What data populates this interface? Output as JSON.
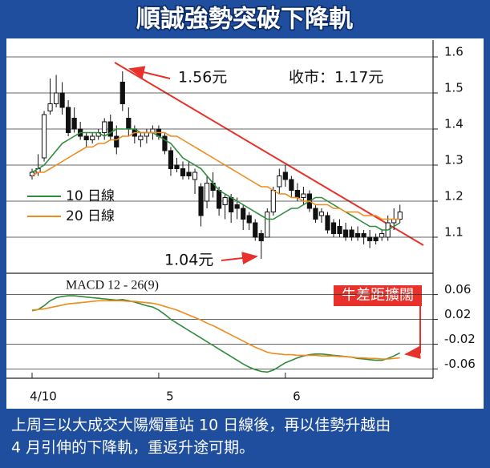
{
  "title": "順誠強勢突破下降軌",
  "chart_data": [
    {
      "type": "candlestick",
      "open": [
        1.27,
        1.28,
        1.32,
        1.45,
        1.47,
        1.5,
        1.46,
        1.43,
        1.4,
        1.38,
        1.37,
        1.38,
        1.39,
        1.42,
        1.38,
        1.53,
        1.43,
        1.4,
        1.37,
        1.38,
        1.39,
        1.4,
        1.38,
        1.34,
        1.3,
        1.29,
        1.28,
        1.26,
        1.24,
        1.2,
        1.25,
        1.23,
        1.19,
        1.21,
        1.19,
        1.18,
        1.16,
        1.14,
        1.11,
        1.1,
        1.17,
        1.24,
        1.28,
        1.26,
        1.23,
        1.21,
        1.22,
        1.18,
        1.16,
        1.16,
        1.14,
        1.13,
        1.12,
        1.12,
        1.11,
        1.11,
        1.1,
        1.1,
        1.1,
        1.1,
        1.14,
        1.15
      ],
      "high": [
        1.29,
        1.33,
        1.45,
        1.54,
        1.55,
        1.53,
        1.48,
        1.46,
        1.42,
        1.39,
        1.39,
        1.4,
        1.43,
        1.44,
        1.41,
        1.56,
        1.46,
        1.41,
        1.39,
        1.4,
        1.41,
        1.41,
        1.39,
        1.35,
        1.32,
        1.31,
        1.31,
        1.29,
        1.25,
        1.27,
        1.28,
        1.24,
        1.22,
        1.22,
        1.21,
        1.19,
        1.17,
        1.15,
        1.12,
        1.18,
        1.24,
        1.29,
        1.3,
        1.27,
        1.25,
        1.24,
        1.23,
        1.19,
        1.18,
        1.17,
        1.15,
        1.15,
        1.14,
        1.13,
        1.13,
        1.12,
        1.12,
        1.11,
        1.12,
        1.16,
        1.18,
        1.19
      ],
      "low": [
        1.26,
        1.27,
        1.31,
        1.44,
        1.46,
        1.44,
        1.38,
        1.39,
        1.37,
        1.35,
        1.36,
        1.37,
        1.37,
        1.37,
        1.33,
        1.45,
        1.38,
        1.36,
        1.35,
        1.36,
        1.37,
        1.37,
        1.33,
        1.27,
        1.28,
        1.26,
        1.26,
        1.22,
        1.13,
        1.18,
        1.21,
        1.16,
        1.15,
        1.14,
        1.15,
        1.12,
        1.12,
        1.09,
        1.04,
        1.1,
        1.16,
        1.22,
        1.24,
        1.21,
        1.2,
        1.19,
        1.17,
        1.14,
        1.14,
        1.11,
        1.1,
        1.1,
        1.09,
        1.09,
        1.09,
        1.08,
        1.07,
        1.08,
        1.09,
        1.09,
        1.12,
        1.14
      ],
      "close": [
        1.28,
        1.29,
        1.44,
        1.47,
        1.5,
        1.46,
        1.39,
        1.4,
        1.38,
        1.37,
        1.38,
        1.39,
        1.42,
        1.38,
        1.35,
        1.47,
        1.4,
        1.38,
        1.38,
        1.39,
        1.4,
        1.38,
        1.34,
        1.29,
        1.29,
        1.27,
        1.27,
        1.28,
        1.16,
        1.25,
        1.23,
        1.18,
        1.21,
        1.17,
        1.18,
        1.15,
        1.14,
        1.1,
        1.09,
        1.17,
        1.23,
        1.27,
        1.26,
        1.23,
        1.21,
        1.22,
        1.18,
        1.15,
        1.17,
        1.12,
        1.11,
        1.11,
        1.1,
        1.1,
        1.1,
        1.1,
        1.09,
        1.09,
        1.11,
        1.14,
        1.15,
        1.17
      ],
      "series": [
        {
          "name": "10 日線",
          "color": "#2e8b3a",
          "values": [
            1.28,
            1.29,
            1.3,
            1.32,
            1.34,
            1.36,
            1.37,
            1.38,
            1.39,
            1.39,
            1.39,
            1.39,
            1.38,
            1.39,
            1.4,
            1.4,
            1.4,
            1.4,
            1.39,
            1.39,
            1.39,
            1.38,
            1.37,
            1.36,
            1.34,
            1.32,
            1.31,
            1.3,
            1.29,
            1.27,
            1.25,
            1.23,
            1.22,
            1.21,
            1.2,
            1.19,
            1.18,
            1.17,
            1.16,
            1.15,
            1.15,
            1.16,
            1.17,
            1.18,
            1.18,
            1.19,
            1.2,
            1.21,
            1.21,
            1.2,
            1.19,
            1.18,
            1.17,
            1.16,
            1.15,
            1.14,
            1.13,
            1.13,
            1.12,
            1.12,
            1.13,
            1.14
          ]
        },
        {
          "name": "20 日線",
          "color": "#f08a1c",
          "values": [
            1.27,
            1.28,
            1.28,
            1.29,
            1.3,
            1.31,
            1.32,
            1.33,
            1.34,
            1.35,
            1.35,
            1.36,
            1.36,
            1.37,
            1.37,
            1.38,
            1.38,
            1.39,
            1.39,
            1.39,
            1.39,
            1.39,
            1.39,
            1.38,
            1.38,
            1.37,
            1.36,
            1.35,
            1.34,
            1.33,
            1.32,
            1.31,
            1.3,
            1.29,
            1.28,
            1.27,
            1.26,
            1.25,
            1.24,
            1.24,
            1.23,
            1.22,
            1.22,
            1.21,
            1.21,
            1.2,
            1.2,
            1.19,
            1.19,
            1.19,
            1.18,
            1.18,
            1.17,
            1.17,
            1.17,
            1.16,
            1.16,
            1.16,
            1.15,
            1.15,
            1.15,
            1.15
          ]
        }
      ],
      "ylim": [
        1.0,
        1.65
      ],
      "yticks": [
        1.1,
        1.2,
        1.3,
        1.4,
        1.5,
        1.6
      ],
      "grid": true,
      "annotations": [
        "1.56元",
        "收市：1.17元",
        "1.04元"
      ]
    },
    {
      "type": "line",
      "title": "MACD 12 - 26(9)",
      "categories": [
        "4/10",
        null,
        null,
        null,
        null,
        null,
        null,
        null,
        null,
        null,
        null,
        null,
        null,
        null,
        null,
        null,
        null,
        null,
        null,
        null,
        null,
        "5",
        null,
        null,
        null,
        null,
        null,
        null,
        null,
        null,
        null,
        null,
        null,
        null,
        null,
        null,
        null,
        null,
        null,
        null,
        null,
        null,
        "6",
        null,
        null,
        null,
        null,
        null,
        null,
        null,
        null,
        null,
        null,
        null,
        null,
        null,
        null,
        null,
        null,
        null,
        null,
        null
      ],
      "series": [
        {
          "color": "#2e8b3a",
          "values": [
            0.034,
            0.036,
            0.042,
            0.05,
            0.055,
            0.057,
            0.058,
            0.058,
            0.057,
            0.056,
            0.055,
            0.054,
            0.053,
            0.052,
            0.051,
            0.052,
            0.05,
            0.048,
            0.045,
            0.042,
            0.04,
            0.035,
            0.028,
            0.02,
            0.014,
            0.008,
            0.002,
            -0.004,
            -0.01,
            -0.016,
            -0.022,
            -0.028,
            -0.034,
            -0.04,
            -0.046,
            -0.052,
            -0.057,
            -0.061,
            -0.064,
            -0.065,
            -0.062,
            -0.056,
            -0.05,
            -0.046,
            -0.042,
            -0.039,
            -0.037,
            -0.036,
            -0.036,
            -0.037,
            -0.038,
            -0.039,
            -0.04,
            -0.041,
            -0.043,
            -0.044,
            -0.045,
            -0.046,
            -0.046,
            -0.043,
            -0.039,
            -0.034
          ]
        },
        {
          "color": "#f08a1c",
          "values": [
            0.035,
            0.036,
            0.037,
            0.039,
            0.041,
            0.043,
            0.045,
            0.046,
            0.047,
            0.048,
            0.049,
            0.05,
            0.05,
            0.05,
            0.05,
            0.05,
            0.049,
            0.049,
            0.048,
            0.047,
            0.046,
            0.044,
            0.041,
            0.038,
            0.035,
            0.031,
            0.027,
            0.023,
            0.019,
            0.014,
            0.01,
            0.005,
            0.0,
            -0.005,
            -0.01,
            -0.015,
            -0.02,
            -0.025,
            -0.029,
            -0.033,
            -0.035,
            -0.036,
            -0.037,
            -0.037,
            -0.038,
            -0.038,
            -0.038,
            -0.038,
            -0.039,
            -0.039,
            -0.039,
            -0.04,
            -0.04,
            -0.041,
            -0.042,
            -0.042,
            -0.043,
            -0.043,
            -0.044,
            -0.044,
            -0.043,
            -0.042
          ]
        }
      ],
      "ylim": [
        -0.075,
        0.075
      ],
      "yticks": [
        -0.06,
        -0.02,
        0.02,
        0.06
      ],
      "grid": true,
      "annotations": [
        "牛差距擴闊"
      ]
    }
  ],
  "caption": [
    "上周三以大成交大陽燭重站 10 日線後，再以佳勢升越由",
    "4 月引伸的下降軌，重返升途可期。"
  ]
}
